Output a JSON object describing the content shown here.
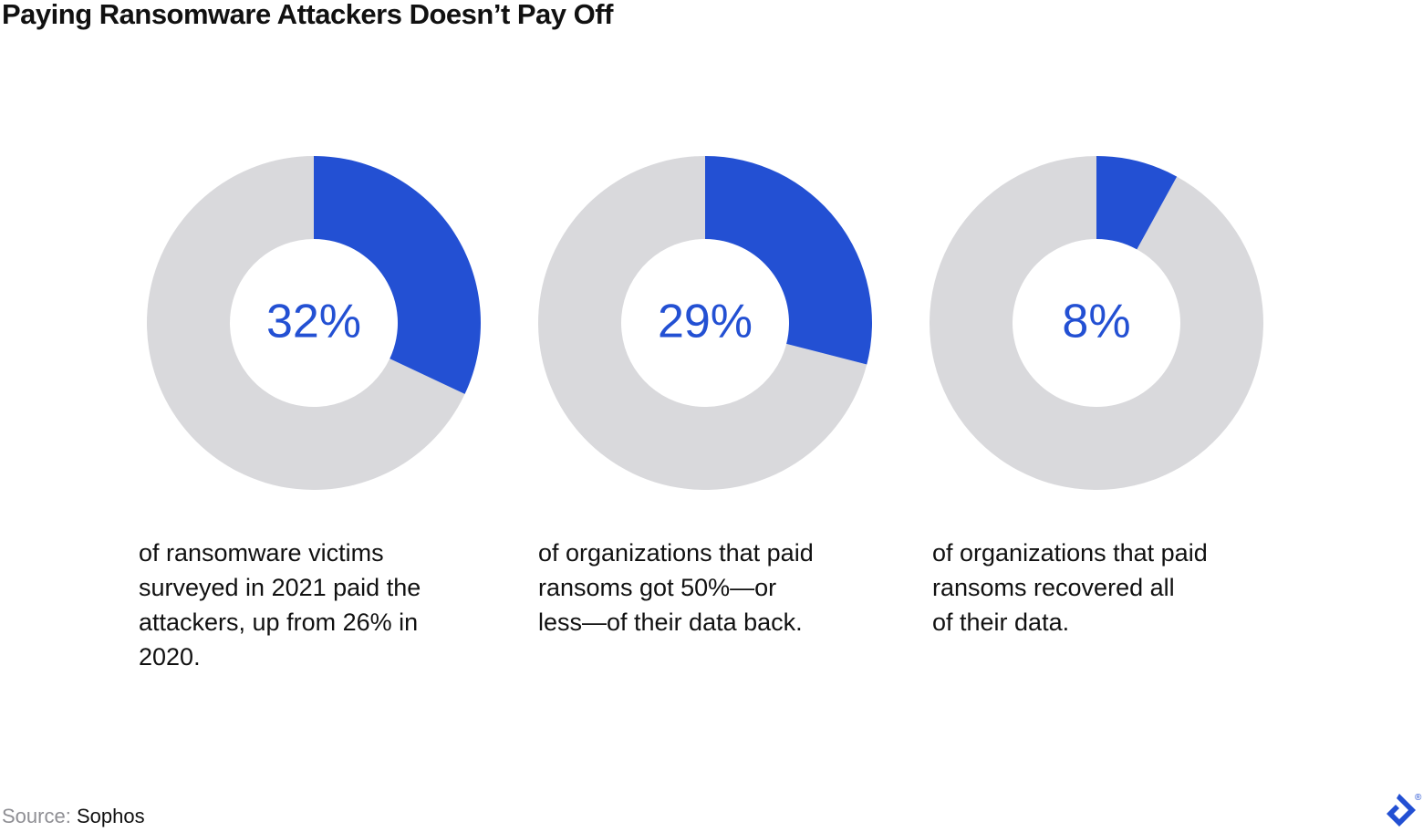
{
  "title": "Paying Ransomware Attackers Doesn’t Pay Off",
  "colors": {
    "highlight": "#2350d3",
    "remainder": "#d9d9dc",
    "text": "#111111",
    "source_label": "#8f8f94"
  },
  "chart_data": {
    "type": "pie",
    "title": "Paying Ransomware Attackers Doesn’t Pay Off",
    "charts": [
      {
        "value": 32,
        "label": "32%",
        "caption": [
          "of ransomware victims",
          "surveyed in 2021 paid the",
          "attackers, up from 26% in",
          "2020."
        ]
      },
      {
        "value": 29,
        "label": "29%",
        "caption": [
          "of organizations that paid",
          "ransoms got 50%—or",
          "less—of their data back."
        ]
      },
      {
        "value": 8,
        "label": "8%",
        "caption": [
          "of organizations that paid",
          "ransoms recovered all",
          "of their data."
        ]
      }
    ]
  },
  "source": {
    "label": "Source:",
    "name": "Sophos"
  },
  "logo": {
    "icon": "toptal-logo-icon",
    "mark": "®"
  }
}
